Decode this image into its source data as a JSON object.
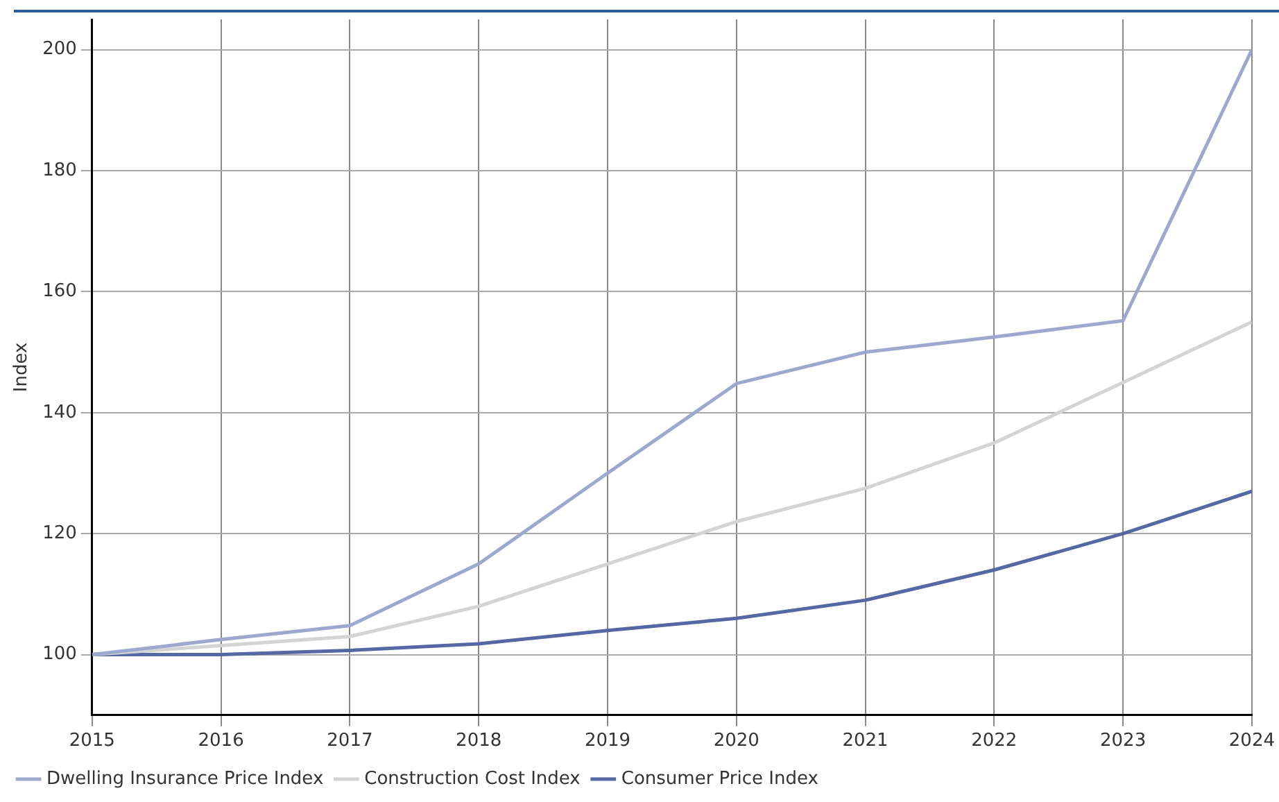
{
  "chart_data": {
    "type": "line",
    "ylabel": "Index",
    "x": [
      2015,
      2016,
      2017,
      2018,
      2019,
      2020,
      2021,
      2022,
      2023,
      2024
    ],
    "xlim": [
      2015,
      2024
    ],
    "xticks": [
      2015,
      2016,
      2017,
      2018,
      2019,
      2020,
      2021,
      2022,
      2023,
      2024
    ],
    "ylim": [
      90,
      205
    ],
    "yticks": [
      100,
      120,
      140,
      160,
      180,
      200
    ],
    "series": [
      {
        "name": "Dwelling Insurance Price Index",
        "color": "#9da8cf",
        "values": [
          100,
          102.5,
          104.8,
          115,
          130,
          144.8,
          150,
          152.5,
          155.2,
          200
        ]
      },
      {
        "name": "Construction Cost Index",
        "color": "#d4d4d4",
        "values": [
          100,
          101.5,
          103,
          108,
          115,
          122,
          127.5,
          135,
          145,
          155
        ]
      },
      {
        "name": "Consumer Price Index",
        "color": "#5468a3",
        "values": [
          100,
          100,
          100.7,
          101.8,
          104,
          106,
          109,
          114,
          120,
          127
        ]
      }
    ],
    "grid": true,
    "legend": "bottom left",
    "marker": "none",
    "line_style": "solid"
  }
}
